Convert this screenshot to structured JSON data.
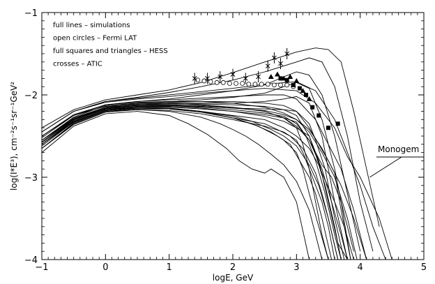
{
  "chart_data": {
    "type": "line",
    "xlabel": "logE, GeV",
    "ylabel": "log(I*E³), cm⁻²s⁻¹sr⁻¹GeV²",
    "xlim": [
      -1,
      5
    ],
    "ylim": [
      -4,
      -1
    ],
    "x_ticks": [
      -1,
      0,
      1,
      2,
      3,
      4,
      5
    ],
    "y_ticks": [
      -4,
      -3,
      -2,
      -1
    ],
    "x_tick_labels": [
      "−1",
      "0",
      "1",
      "2",
      "3",
      "4",
      "5"
    ],
    "y_tick_labels": [
      "−4",
      "−3",
      "−2",
      "−1"
    ],
    "grid": false,
    "legend": {
      "placement": "top-left",
      "entries": [
        "full lines – simulations",
        "open circles – Fermi LAT",
        "full squares and triangles – HESS",
        "crosses – ATIC"
      ]
    },
    "annotation": {
      "text": "Monogem",
      "target": [
        4.15,
        -3.0
      ]
    },
    "series": [
      {
        "style": "line",
        "x": [
          -1,
          -0.5,
          0,
          0.5,
          1,
          1.5,
          2,
          2.5,
          3,
          3.3,
          3.5,
          3.7,
          3.9,
          4.1,
          4.3
        ],
        "y": [
          -2.4,
          -2.18,
          -2.06,
          -2.0,
          -1.94,
          -1.85,
          -1.73,
          -1.6,
          -1.48,
          -1.43,
          -1.45,
          -1.6,
          -2.2,
          -2.9,
          -3.6
        ]
      },
      {
        "style": "line",
        "x": [
          -1,
          -0.5,
          0,
          0.5,
          1,
          1.5,
          2,
          2.5,
          3,
          3.2,
          3.4,
          3.6,
          3.8,
          4.0,
          4.2
        ],
        "y": [
          -2.45,
          -2.2,
          -2.08,
          -2.03,
          -1.97,
          -1.9,
          -1.82,
          -1.72,
          -1.6,
          -1.55,
          -1.6,
          -1.9,
          -2.5,
          -3.3,
          -3.9
        ]
      },
      {
        "style": "line",
        "x": [
          -1,
          -0.5,
          0,
          0.5,
          1,
          1.5,
          2,
          2.5,
          2.8,
          3.0,
          3.2,
          3.4,
          3.6,
          3.8,
          4.0
        ],
        "y": [
          -2.5,
          -2.25,
          -2.12,
          -2.08,
          -2.05,
          -2.0,
          -1.95,
          -1.88,
          -1.78,
          -1.72,
          -1.76,
          -2.0,
          -2.5,
          -3.2,
          -3.9
        ]
      },
      {
        "style": "line",
        "x": [
          -1,
          -0.5,
          0,
          0.5,
          1,
          1.5,
          2,
          2.5,
          2.8,
          3.0,
          3.2,
          3.4,
          3.6,
          3.7,
          3.9
        ],
        "y": [
          -2.55,
          -2.28,
          -2.15,
          -2.1,
          -2.08,
          -2.06,
          -2.03,
          -1.98,
          -1.9,
          -1.85,
          -1.92,
          -2.3,
          -2.9,
          -3.3,
          -3.9
        ]
      },
      {
        "style": "line",
        "x": [
          -1,
          -0.5,
          0,
          0.5,
          1,
          1.5,
          2,
          2.5,
          2.8,
          3.0,
          3.2,
          3.4,
          3.5,
          3.6,
          3.8
        ],
        "y": [
          -2.55,
          -2.3,
          -2.17,
          -2.12,
          -2.1,
          -2.1,
          -2.1,
          -2.08,
          -2.05,
          -2.02,
          -2.1,
          -2.5,
          -2.9,
          -3.3,
          -4.0
        ]
      },
      {
        "style": "line",
        "x": [
          -1,
          -0.5,
          0,
          0.5,
          1,
          1.5,
          2,
          2.5,
          2.8,
          3.0,
          3.2,
          3.3,
          3.45,
          3.6,
          3.75
        ],
        "y": [
          -2.6,
          -2.32,
          -2.18,
          -2.14,
          -2.13,
          -2.14,
          -2.16,
          -2.17,
          -2.18,
          -2.2,
          -2.35,
          -2.55,
          -2.9,
          -3.5,
          -4.0
        ]
      },
      {
        "style": "line",
        "x": [
          -1,
          -0.5,
          0,
          0.5,
          1,
          1.5,
          2,
          2.5,
          2.8,
          3.0,
          3.15,
          3.3,
          3.45,
          3.6,
          3.7
        ],
        "y": [
          -2.6,
          -2.33,
          -2.19,
          -2.15,
          -2.15,
          -2.17,
          -2.2,
          -2.24,
          -2.28,
          -2.33,
          -2.5,
          -2.8,
          -3.2,
          -3.7,
          -4.0
        ]
      },
      {
        "style": "line",
        "x": [
          -1,
          -0.5,
          0,
          0.5,
          1,
          1.5,
          2,
          2.3,
          2.6,
          2.8,
          3.0,
          3.2,
          3.35,
          3.5,
          3.65
        ],
        "y": [
          -2.65,
          -2.35,
          -2.2,
          -2.17,
          -2.17,
          -2.2,
          -2.26,
          -2.32,
          -2.42,
          -2.5,
          -2.62,
          -2.85,
          -3.1,
          -3.5,
          -4.0
        ]
      },
      {
        "style": "line",
        "x": [
          -1,
          -0.5,
          0,
          0.5,
          1,
          1.5,
          1.8,
          2.0,
          2.2,
          2.4,
          2.6,
          2.8,
          3.0,
          3.2,
          3.4
        ],
        "y": [
          -2.65,
          -2.36,
          -2.21,
          -2.18,
          -2.2,
          -2.27,
          -2.35,
          -2.42,
          -2.5,
          -2.6,
          -2.72,
          -2.85,
          -3.05,
          -3.4,
          -4.0
        ]
      },
      {
        "style": "line",
        "x": [
          -1,
          -0.5,
          0,
          0.5,
          1,
          1.3,
          1.6,
          1.9,
          2.1,
          2.3,
          2.5,
          2.6,
          2.8,
          3.0,
          3.2
        ],
        "y": [
          -2.7,
          -2.38,
          -2.23,
          -2.2,
          -2.25,
          -2.35,
          -2.48,
          -2.65,
          -2.8,
          -2.9,
          -2.95,
          -2.9,
          -3.0,
          -3.3,
          -4.0
        ]
      },
      {
        "style": "line",
        "x": [
          -1,
          -0.5,
          0,
          0.5,
          1,
          1.5,
          2,
          2.5,
          2.8,
          3.0,
          3.1,
          3.2,
          3.3,
          3.4,
          3.5
        ],
        "y": [
          -2.5,
          -2.25,
          -2.14,
          -2.11,
          -2.1,
          -2.12,
          -2.15,
          -2.2,
          -2.28,
          -2.4,
          -2.6,
          -2.9,
          -3.3,
          -3.7,
          -4.0
        ]
      },
      {
        "style": "line",
        "x": [
          -1,
          -0.5,
          0,
          0.5,
          1,
          1.5,
          2,
          2.5,
          2.8,
          3.0,
          3.2,
          3.4,
          3.6,
          3.8,
          3.95
        ],
        "y": [
          -2.55,
          -2.27,
          -2.13,
          -2.1,
          -2.09,
          -2.08,
          -2.1,
          -2.15,
          -2.22,
          -2.3,
          -2.45,
          -2.7,
          -3.0,
          -3.5,
          -4.0
        ]
      },
      {
        "style": "line",
        "x": [
          -1,
          -0.5,
          0,
          0.5,
          1,
          1.5,
          2,
          2.5,
          2.8,
          3.0,
          3.2,
          3.4,
          3.55,
          3.7,
          3.85
        ],
        "y": [
          -2.6,
          -2.3,
          -2.16,
          -2.12,
          -2.12,
          -2.13,
          -2.15,
          -2.2,
          -2.28,
          -2.38,
          -2.55,
          -2.85,
          -3.0,
          -3.3,
          -4.0
        ]
      },
      {
        "style": "line",
        "x": [
          -1,
          -0.5,
          0,
          0.5,
          1,
          1.5,
          2,
          2.5,
          2.8,
          3.0,
          3.3,
          3.5,
          3.7,
          3.9,
          4.1
        ],
        "y": [
          -2.5,
          -2.24,
          -2.12,
          -2.08,
          -2.06,
          -2.04,
          -2.02,
          -2.0,
          -2.0,
          -2.05,
          -2.3,
          -2.6,
          -2.9,
          -3.4,
          -4.0
        ]
      },
      {
        "style": "line",
        "x": [
          -1,
          -0.5,
          0,
          0.5,
          1,
          1.5,
          2,
          2.5,
          3.0,
          3.3,
          3.6,
          3.8,
          4.0,
          4.3,
          4.5
        ],
        "y": [
          -2.45,
          -2.2,
          -2.09,
          -2.05,
          -2.02,
          -1.98,
          -1.95,
          -1.92,
          -1.95,
          -2.1,
          -2.4,
          -2.75,
          -3.0,
          -3.5,
          -4.0
        ]
      },
      {
        "style": "line",
        "x": [
          -1,
          -0.5,
          0,
          0.5,
          1,
          1.5,
          2,
          2.5,
          3.0,
          3.3,
          3.6,
          3.8,
          4.0,
          4.2,
          4.4
        ],
        "y": [
          -2.45,
          -2.2,
          -2.08,
          -2.04,
          -2.0,
          -1.96,
          -1.92,
          -1.87,
          -1.84,
          -1.95,
          -2.3,
          -2.7,
          -3.1,
          -3.6,
          -4.0
        ]
      },
      {
        "style": "line",
        "x": [
          -1,
          -0.5,
          0,
          0.5,
          1,
          1.5,
          2,
          2.5,
          2.8,
          3.0,
          3.2,
          3.35,
          3.5,
          3.65,
          3.8
        ],
        "y": [
          -2.6,
          -2.31,
          -2.17,
          -2.14,
          -2.14,
          -2.16,
          -2.2,
          -2.26,
          -2.32,
          -2.4,
          -2.5,
          -2.8,
          -3.3,
          -3.8,
          -4.0
        ]
      },
      {
        "style": "line",
        "x": [
          -1,
          -0.5,
          0,
          0.5,
          1,
          1.5,
          2,
          2.3,
          2.6,
          2.8,
          3.0,
          3.1,
          3.2,
          3.35,
          3.5
        ],
        "y": [
          -2.65,
          -2.34,
          -2.19,
          -2.16,
          -2.16,
          -2.2,
          -2.28,
          -2.35,
          -2.45,
          -2.55,
          -2.7,
          -2.9,
          -3.2,
          -3.6,
          -4.0
        ]
      },
      {
        "style": "line",
        "x": [
          -1,
          -0.5,
          0,
          0.5,
          1,
          1.5,
          2,
          2.4,
          2.7,
          2.9,
          3.05,
          3.2,
          3.3,
          3.4,
          3.55
        ],
        "y": [
          -2.6,
          -2.32,
          -2.18,
          -2.15,
          -2.16,
          -2.2,
          -2.28,
          -2.38,
          -2.5,
          -2.6,
          -2.8,
          -3.0,
          -3.2,
          -3.5,
          -4.0
        ]
      },
      {
        "style": "line",
        "x": [
          -1,
          -0.5,
          0,
          0.5,
          1,
          1.5,
          2,
          2.5,
          2.8,
          3.0,
          3.2,
          3.4,
          3.6,
          3.75,
          3.9
        ],
        "y": [
          -2.55,
          -2.29,
          -2.15,
          -2.12,
          -2.11,
          -2.11,
          -2.12,
          -2.14,
          -2.18,
          -2.25,
          -2.5,
          -2.95,
          -3.3,
          -3.6,
          -4.0
        ]
      },
      {
        "style": "line",
        "x": [
          -1,
          -0.5,
          0,
          0.5,
          1,
          1.5,
          2,
          2.5,
          2.8,
          3.0,
          3.2,
          3.35,
          3.45,
          3.6,
          3.7
        ],
        "y": [
          -2.6,
          -2.33,
          -2.19,
          -2.16,
          -2.17,
          -2.2,
          -2.25,
          -2.3,
          -2.4,
          -2.5,
          -2.65,
          -2.85,
          -3.1,
          -3.6,
          -4.0
        ]
      },
      {
        "style": "line",
        "x": [
          -1,
          -0.5,
          0,
          0.5,
          1,
          1.5,
          2,
          2.5,
          2.8,
          3.0,
          3.1,
          3.25,
          3.4,
          3.5,
          3.6
        ],
        "y": [
          -2.65,
          -2.35,
          -2.2,
          -2.18,
          -2.19,
          -2.23,
          -2.3,
          -2.38,
          -2.45,
          -2.55,
          -2.7,
          -3.0,
          -3.3,
          -3.6,
          -4.0
        ]
      },
      {
        "style": "line",
        "x": [
          -1,
          -0.5,
          0,
          0.5,
          1,
          1.5,
          2,
          2.5,
          2.8,
          3.0,
          3.2,
          3.5,
          3.7,
          3.9,
          4.1
        ],
        "y": [
          -2.52,
          -2.25,
          -2.12,
          -2.09,
          -2.08,
          -2.08,
          -2.08,
          -2.1,
          -2.13,
          -2.2,
          -2.4,
          -2.8,
          -3.1,
          -3.5,
          -4.0
        ]
      },
      {
        "style": "line",
        "x": [
          -1,
          -0.5,
          0,
          0.5,
          1,
          1.5,
          2,
          2.5,
          2.8,
          3.0,
          3.2,
          3.4,
          3.55,
          3.7,
          3.8
        ],
        "y": [
          -2.58,
          -2.3,
          -2.16,
          -2.13,
          -2.13,
          -2.15,
          -2.18,
          -2.22,
          -2.26,
          -2.35,
          -2.55,
          -2.9,
          -3.3,
          -3.7,
          -4.0
        ]
      },
      {
        "style": "line",
        "x": [
          -1,
          -0.5,
          0,
          0.5,
          1,
          1.5,
          2,
          2.5,
          2.7,
          2.9,
          3.1,
          3.3,
          3.4,
          3.5,
          3.65
        ],
        "y": [
          -2.62,
          -2.33,
          -2.19,
          -2.16,
          -2.17,
          -2.21,
          -2.28,
          -2.35,
          -2.42,
          -2.5,
          -2.65,
          -2.95,
          -3.2,
          -3.5,
          -4.0
        ]
      },
      {
        "style": "line",
        "x": [
          -1,
          -0.5,
          0,
          0.5,
          1,
          1.5,
          2,
          2.5,
          2.8,
          3.0,
          3.2,
          3.4,
          3.6,
          3.7,
          3.85
        ],
        "y": [
          -2.57,
          -2.29,
          -2.16,
          -2.13,
          -2.13,
          -2.14,
          -2.16,
          -2.19,
          -2.24,
          -2.3,
          -2.42,
          -2.65,
          -2.95,
          -3.4,
          -4.0
        ]
      },
      {
        "style": "open-circles",
        "x": [
          1.45,
          1.55,
          1.65,
          1.75,
          1.85,
          1.95,
          2.05,
          2.15,
          2.25,
          2.35,
          2.45,
          2.55,
          2.65,
          2.75,
          2.85,
          2.95
        ],
        "y": [
          -1.82,
          -1.83,
          -1.84,
          -1.85,
          -1.85,
          -1.86,
          -1.86,
          -1.86,
          -1.87,
          -1.87,
          -1.87,
          -1.87,
          -1.88,
          -1.88,
          -1.88,
          -1.9
        ]
      },
      {
        "style": "filled-triangles",
        "x": [
          2.6,
          2.7,
          2.8,
          2.9,
          3.0,
          3.1,
          3.2
        ],
        "y": [
          -1.78,
          -1.75,
          -1.8,
          -1.78,
          -1.83,
          -1.95,
          -2.05
        ]
      },
      {
        "style": "filled-squares",
        "x": [
          2.75,
          2.85,
          2.95,
          3.05,
          3.15,
          3.25,
          3.35,
          3.5,
          3.65
        ],
        "y": [
          -1.8,
          -1.82,
          -1.88,
          -1.92,
          -2.0,
          -2.15,
          -2.25,
          -2.4,
          -2.35
        ]
      },
      {
        "style": "crosses",
        "x": [
          1.4,
          1.6,
          1.8,
          2.0,
          2.2,
          2.4,
          2.55,
          2.65,
          2.75,
          2.85
        ],
        "y": [
          -1.8,
          -1.8,
          -1.78,
          -1.75,
          -1.8,
          -1.78,
          -1.65,
          -1.55,
          -1.62,
          -1.5
        ]
      }
    ]
  }
}
